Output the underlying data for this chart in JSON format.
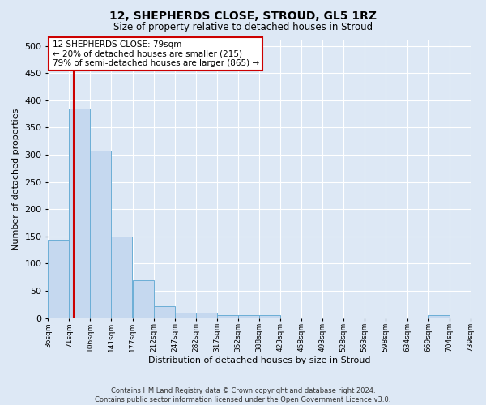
{
  "title": "12, SHEPHERDS CLOSE, STROUD, GL5 1RZ",
  "subtitle": "Size of property relative to detached houses in Stroud",
  "xlabel": "Distribution of detached houses by size in Stroud",
  "ylabel": "Number of detached properties",
  "bar_left_edges": [
    36,
    71,
    106,
    141,
    177,
    212,
    247,
    282,
    317,
    352,
    388,
    423,
    458,
    493,
    528,
    563,
    598,
    634,
    669,
    704
  ],
  "bar_heights": [
    144,
    385,
    307,
    149,
    70,
    22,
    10,
    10,
    5,
    5,
    5,
    0,
    0,
    0,
    0,
    0,
    0,
    0,
    5,
    0
  ],
  "bin_width": 35,
  "bar_color": "#c5d8ef",
  "bar_edge_color": "#6baed6",
  "ylim": [
    0,
    510
  ],
  "yticks": [
    0,
    50,
    100,
    150,
    200,
    250,
    300,
    350,
    400,
    450,
    500
  ],
  "xtick_labels": [
    "36sqm",
    "71sqm",
    "106sqm",
    "141sqm",
    "177sqm",
    "212sqm",
    "247sqm",
    "282sqm",
    "317sqm",
    "352sqm",
    "388sqm",
    "423sqm",
    "458sqm",
    "493sqm",
    "528sqm",
    "563sqm",
    "598sqm",
    "634sqm",
    "669sqm",
    "704sqm",
    "739sqm"
  ],
  "property_label": "12 SHEPHERDS CLOSE: 79sqm",
  "annotation_line1": "← 20% of detached houses are smaller (215)",
  "annotation_line2": "79% of semi-detached houses are larger (865) →",
  "annotation_box_color": "#ffffff",
  "annotation_box_edge": "#cc0000",
  "vline_color": "#cc0000",
  "vline_x": 79,
  "bg_color": "#dde8f5",
  "fig_color": "#dde8f5",
  "grid_color": "#ffffff",
  "footer_line1": "Contains HM Land Registry data © Crown copyright and database right 2024.",
  "footer_line2": "Contains public sector information licensed under the Open Government Licence v3.0."
}
